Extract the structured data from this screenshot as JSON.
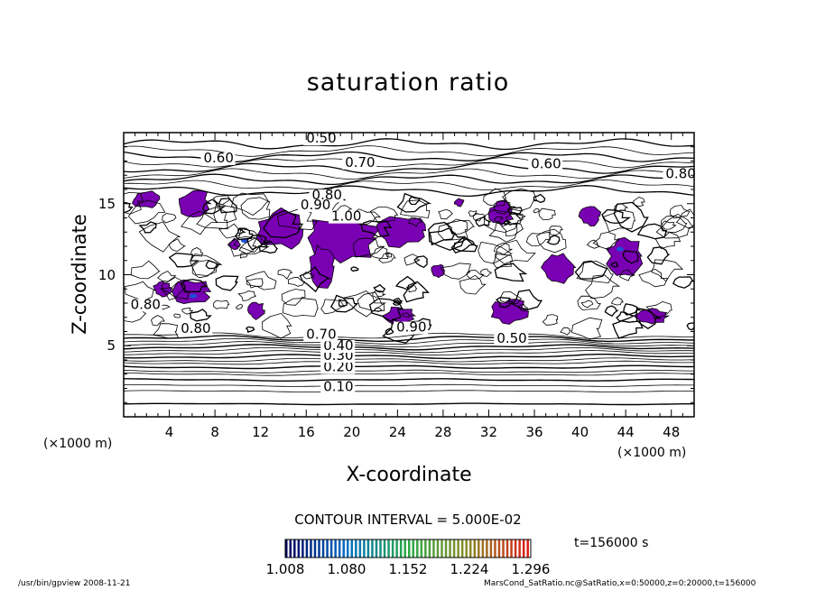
{
  "chart_data": {
    "type": "contour",
    "title": "saturation ratio",
    "xlabel": "X-coordinate",
    "ylabel": "Z-coordinate",
    "x_unit": "(×1000 m)",
    "y_unit": "(×1000 m)",
    "xlim": [
      0,
      50
    ],
    "ylim": [
      0,
      20
    ],
    "x_ticks": [
      4,
      8,
      12,
      16,
      20,
      24,
      28,
      32,
      36,
      40,
      44,
      48
    ],
    "y_ticks": [
      5,
      10,
      15
    ],
    "contour_labels": [
      {
        "text": "0.10",
        "x": 17.5,
        "y": 1.8
      },
      {
        "text": "0.20",
        "x": 17.5,
        "y": 3.2
      },
      {
        "text": "0.30",
        "x": 17.5,
        "y": 4.0
      },
      {
        "text": "0.40",
        "x": 17.5,
        "y": 4.7
      },
      {
        "text": "0.70",
        "x": 16.0,
        "y": 5.5
      },
      {
        "text": "0.90",
        "x": 23.9,
        "y": 6.0
      },
      {
        "text": "0.50",
        "x": 32.7,
        "y": 5.2
      },
      {
        "text": "0.80",
        "x": 0.6,
        "y": 7.6
      },
      {
        "text": "0.80",
        "x": 5.0,
        "y": 5.9
      },
      {
        "text": "0.50",
        "x": 16.0,
        "y": 19.3
      },
      {
        "text": "0.70",
        "x": 19.4,
        "y": 17.6
      },
      {
        "text": "0.60",
        "x": 7.0,
        "y": 17.9
      },
      {
        "text": "0.60",
        "x": 35.7,
        "y": 17.5
      },
      {
        "text": "0.80",
        "x": 47.5,
        "y": 16.8
      },
      {
        "text": "0.80",
        "x": 16.5,
        "y": 15.3
      },
      {
        "text": "0.90",
        "x": 15.5,
        "y": 14.6
      },
      {
        "text": "1.00",
        "x": 18.2,
        "y": 13.8
      }
    ],
    "shaded_threshold": 1.0,
    "colorbar": {
      "min": 1.008,
      "max": 1.296,
      "tick_labels": [
        "1.008",
        "1.080",
        "1.152",
        "1.224",
        "1.296"
      ]
    },
    "contour_interval": "CONTOUR INTERVAL = 5.000E-02",
    "time_label": "t=156000  s"
  },
  "footer": {
    "left": "/usr/bin/gpview   2008-11-21",
    "right": "MarsCond_SatRatio.nc@SatRatio,x=0:50000,z=0:20000,t=156000"
  },
  "colors": {
    "shade": "#7a00b4",
    "shade_high": "#1d4fd8",
    "line": "#000000"
  }
}
